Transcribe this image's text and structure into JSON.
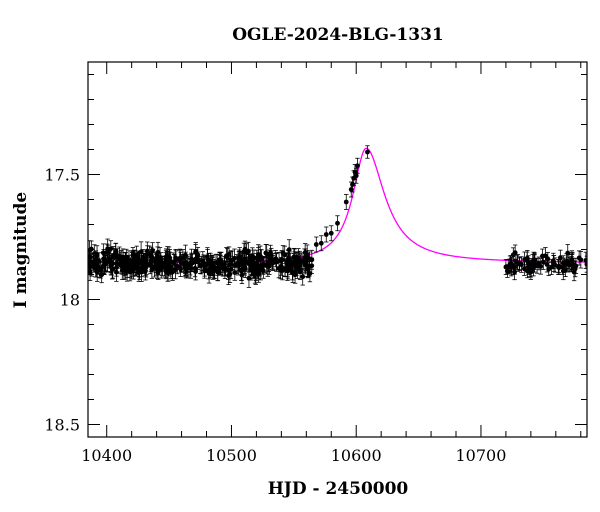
{
  "chart_data": {
    "type": "scatter",
    "title": "OGLE-2024-BLG-1331",
    "xlabel": "HJD - 2450000",
    "ylabel": "I magnitude",
    "xlim": [
      10385,
      10785
    ],
    "ylim": [
      18.55,
      17.05
    ],
    "y_inverted": true,
    "x_ticks": [
      10400,
      10500,
      10600,
      10700
    ],
    "x_tick_labels": [
      "10400",
      "10500",
      "10600",
      "10700"
    ],
    "y_ticks": [
      17.5,
      18.0,
      18.5
    ],
    "y_tick_labels": [
      "17.5",
      "18",
      "18.5"
    ],
    "grid": false,
    "colors": {
      "points": "#000000",
      "model": "#ff00ff",
      "axes": "#000000"
    },
    "model": {
      "name": "",
      "baseline_mag": 17.855,
      "peak_mag": 17.395,
      "peak_x": 10608,
      "rise_timescale": 13,
      "fall_timescale": 18
    },
    "series": [
      {
        "type": "points_with_errors",
        "baseline_clusters": [
          {
            "x_start": 10385,
            "x_end": 10565,
            "mean_mag": 17.855,
            "scatter": 0.04,
            "err": 0.035,
            "n": 420
          },
          {
            "x_start": 10720,
            "x_end": 10785,
            "mean_mag": 17.86,
            "scatter": 0.03,
            "err": 0.03,
            "n": 65
          }
        ],
        "points": [
          {
            "x": 10568,
            "y": 17.78,
            "err": 0.03
          },
          {
            "x": 10572,
            "y": 17.775,
            "err": 0.03
          },
          {
            "x": 10576,
            "y": 17.74,
            "err": 0.03
          },
          {
            "x": 10580,
            "y": 17.735,
            "err": 0.03
          },
          {
            "x": 10585,
            "y": 17.695,
            "err": 0.03
          },
          {
            "x": 10592,
            "y": 17.61,
            "err": 0.03
          },
          {
            "x": 10596,
            "y": 17.56,
            "err": 0.03
          },
          {
            "x": 10597,
            "y": 17.54,
            "err": 0.03
          },
          {
            "x": 10598,
            "y": 17.515,
            "err": 0.03
          },
          {
            "x": 10599,
            "y": 17.49,
            "err": 0.03
          },
          {
            "x": 10600,
            "y": 17.505,
            "err": 0.03
          },
          {
            "x": 10601,
            "y": 17.465,
            "err": 0.03
          },
          {
            "x": 10609,
            "y": 17.41,
            "err": 0.025
          },
          {
            "x": 10720,
            "y": 17.87,
            "err": 0.03
          },
          {
            "x": 10723,
            "y": 17.868,
            "err": 0.03
          },
          {
            "x": 10735,
            "y": 17.84,
            "err": 0.03
          },
          {
            "x": 10738,
            "y": 17.855,
            "err": 0.03
          },
          {
            "x": 10740,
            "y": 17.89,
            "err": 0.03
          },
          {
            "x": 10745,
            "y": 17.865,
            "err": 0.03
          },
          {
            "x": 10750,
            "y": 17.85,
            "err": 0.03
          },
          {
            "x": 10753,
            "y": 17.86,
            "err": 0.03
          },
          {
            "x": 10758,
            "y": 17.845,
            "err": 0.03
          },
          {
            "x": 10762,
            "y": 17.87,
            "err": 0.03
          },
          {
            "x": 10766,
            "y": 17.855,
            "err": 0.03
          },
          {
            "x": 10770,
            "y": 17.86,
            "err": 0.03
          },
          {
            "x": 10773,
            "y": 17.85,
            "err": 0.03
          }
        ]
      }
    ]
  }
}
